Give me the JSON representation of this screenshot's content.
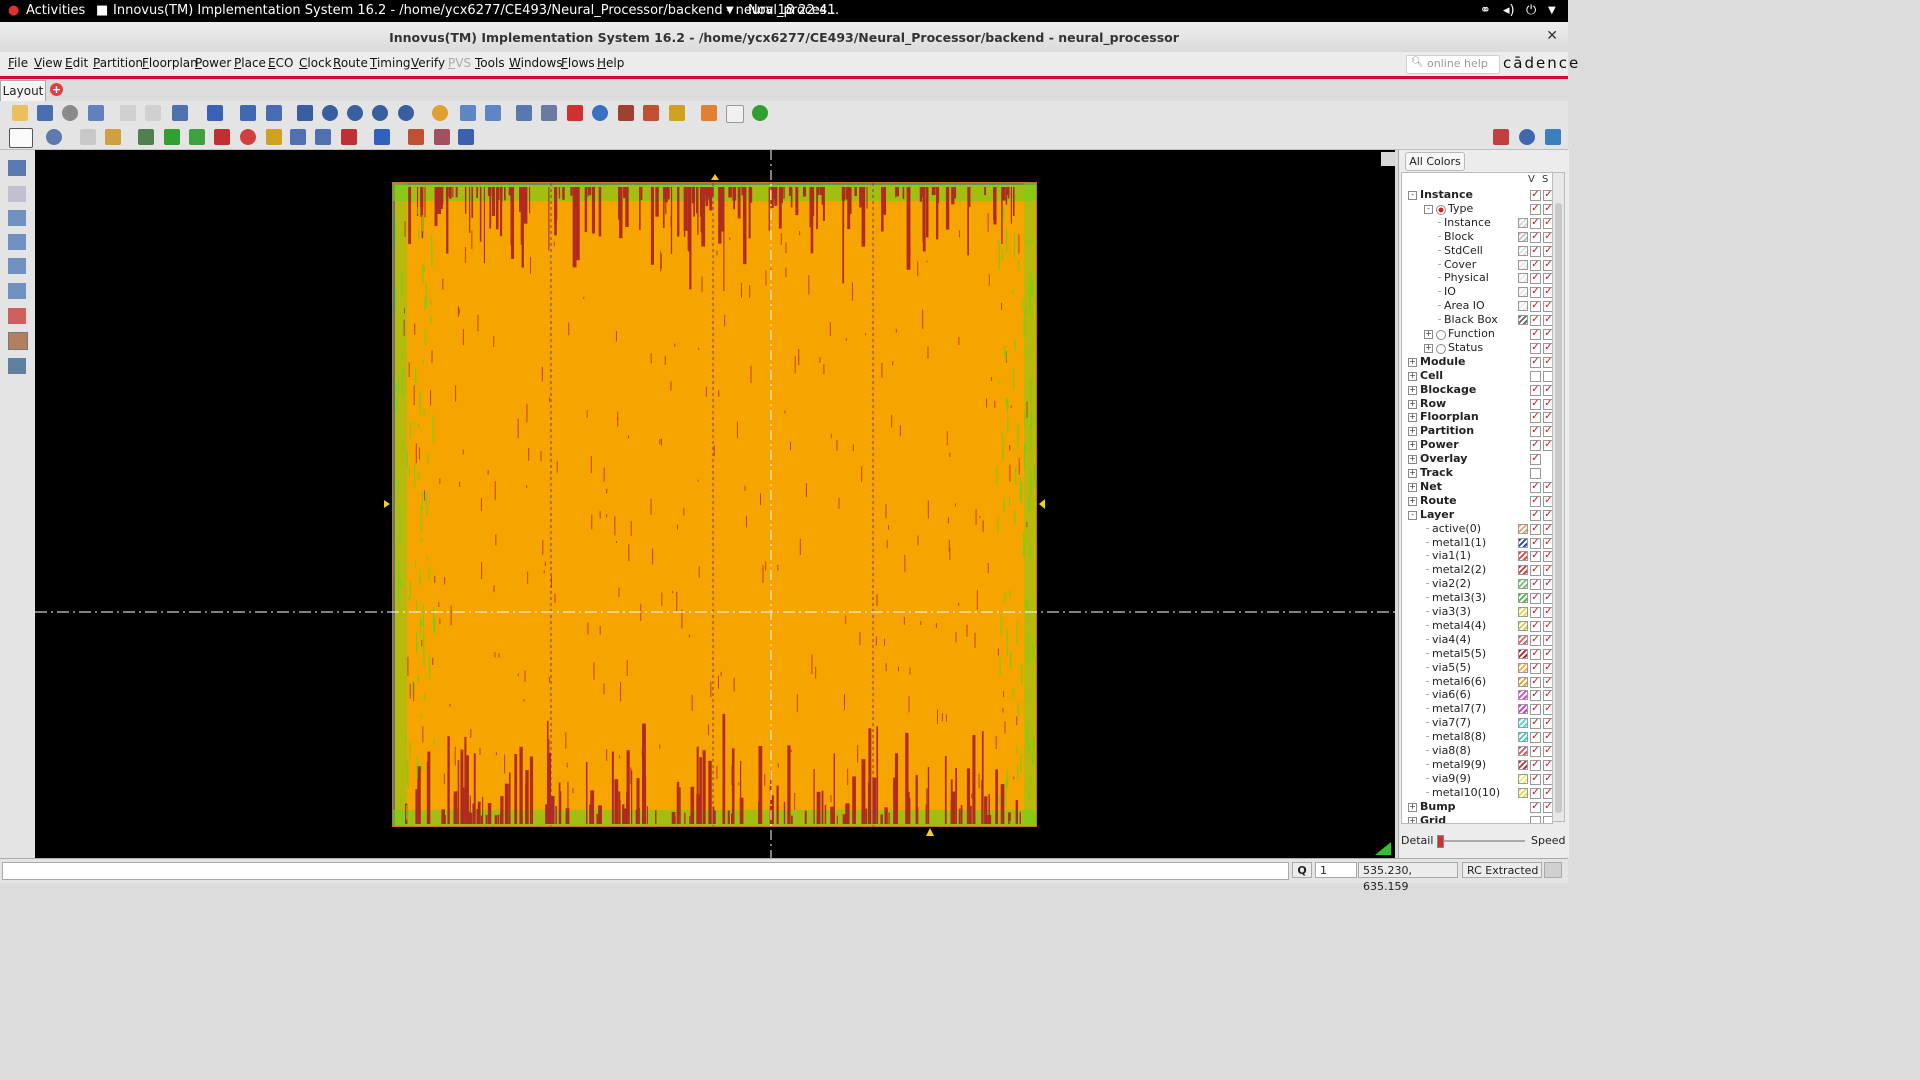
{
  "topbar": {
    "activities": "Activities",
    "window_title": "Innovus(TM) Implementation System 16.2 - /home/ycx6277/CE493/Neural_Processor/backend - neural_proces...",
    "datetime": "Nov 18  22:41"
  },
  "titlebar": {
    "title": "Innovus(TM) Implementation System 16.2 - /home/ycx6277/CE493/Neural_Processor/backend - neural_processor"
  },
  "menu": [
    "File",
    "View",
    "Edit",
    "Partition",
    "Floorplan",
    "Power",
    "Place",
    "ECO",
    "Clock",
    "Route",
    "Timing",
    "Verify",
    "PVS",
    "Tools",
    "Windows",
    "Flows",
    "Help"
  ],
  "search": {
    "placeholder": "online help"
  },
  "brand": "cādence",
  "tabs": {
    "layout": "Layout"
  },
  "panel": {
    "all_colors": "All Colors",
    "col_v": "V",
    "col_s": "S",
    "detail": "Detail",
    "speed": "Speed",
    "tree": [
      {
        "label": "Instance",
        "bold": true,
        "level": 0,
        "exp": "-",
        "v": true,
        "s": true
      },
      {
        "label": "Type",
        "bold": false,
        "level": 1,
        "exp": "-",
        "radio": "on",
        "v": true,
        "s": true
      },
      {
        "label": "Instance",
        "level": 2,
        "swatch": "#d8d8d8",
        "v": true,
        "s": true
      },
      {
        "label": "Block",
        "level": 2,
        "swatch": "#c0c0c0",
        "v": true,
        "s": true
      },
      {
        "label": "StdCell",
        "level": 2,
        "swatch": "#e0e0e0",
        "v": true,
        "s": true
      },
      {
        "label": "Cover",
        "level": 2,
        "swatch": "#e8e8e8",
        "v": true,
        "s": true
      },
      {
        "label": "Physical",
        "level": 2,
        "swatch": "#e8e8e8",
        "v": true,
        "s": true
      },
      {
        "label": "IO",
        "level": 2,
        "swatch": "#e8e8e8",
        "v": true,
        "s": true
      },
      {
        "label": "Area IO",
        "level": 2,
        "swatch": "#e8e8e8",
        "v": true,
        "s": true
      },
      {
        "label": "Black Box",
        "level": 2,
        "swatch": "#666666",
        "v": true,
        "s": true
      },
      {
        "label": "Function",
        "level": 1,
        "exp": "+",
        "radio": "off",
        "v": true,
        "s": true
      },
      {
        "label": "Status",
        "level": 1,
        "exp": "+",
        "radio": "off",
        "v": true,
        "s": true
      },
      {
        "label": "Module",
        "bold": true,
        "level": 0,
        "exp": "+",
        "v": true,
        "s": true
      },
      {
        "label": "Cell",
        "bold": true,
        "level": 0,
        "exp": "+",
        "v": false,
        "s": false
      },
      {
        "label": "Blockage",
        "bold": true,
        "level": 0,
        "exp": "+",
        "v": true,
        "s": true
      },
      {
        "label": "Row",
        "bold": true,
        "level": 0,
        "exp": "+",
        "v": true,
        "s": true
      },
      {
        "label": "Floorplan",
        "bold": true,
        "level": 0,
        "exp": "+",
        "v": true,
        "s": true
      },
      {
        "label": "Partition",
        "bold": true,
        "level": 0,
        "exp": "+",
        "v": true,
        "s": true
      },
      {
        "label": "Power",
        "bold": true,
        "level": 0,
        "exp": "+",
        "v": true,
        "s": true
      },
      {
        "label": "Overlay",
        "bold": true,
        "level": 0,
        "exp": "+",
        "v": true,
        "s": null
      },
      {
        "label": "Track",
        "bold": true,
        "level": 0,
        "exp": "+",
        "v": false,
        "s": null
      },
      {
        "label": "Net",
        "bold": true,
        "level": 0,
        "exp": "+",
        "v": true,
        "s": true
      },
      {
        "label": "Route",
        "bold": true,
        "level": 0,
        "exp": "+",
        "v": true,
        "s": true
      },
      {
        "label": "Layer",
        "bold": true,
        "level": 0,
        "exp": "-",
        "v": true,
        "s": true
      },
      {
        "label": "active(0)",
        "level": 3,
        "swatch": "#f0a060",
        "v": true,
        "s": true
      },
      {
        "label": "metal1(1)",
        "level": 3,
        "swatch": "#2040d0",
        "v": true,
        "s": true
      },
      {
        "label": "via1(1)",
        "level": 3,
        "swatch": "#e04040",
        "v": true,
        "s": true
      },
      {
        "label": "metal2(2)",
        "level": 3,
        "swatch": "#e03030",
        "v": true,
        "s": true
      },
      {
        "label": "via2(2)",
        "level": 3,
        "swatch": "#60d060",
        "v": true,
        "s": true
      },
      {
        "label": "metal3(3)",
        "level": 3,
        "swatch": "#40c040",
        "v": true,
        "s": true
      },
      {
        "label": "via3(3)",
        "level": 3,
        "swatch": "#e0e040",
        "v": true,
        "s": true
      },
      {
        "label": "metal4(4)",
        "level": 3,
        "swatch": "#d0d040",
        "v": true,
        "s": true
      },
      {
        "label": "via4(4)",
        "level": 3,
        "swatch": "#e06060",
        "v": true,
        "s": true
      },
      {
        "label": "metal5(5)",
        "level": 3,
        "swatch": "#c02020",
        "v": true,
        "s": true
      },
      {
        "label": "via5(5)",
        "level": 3,
        "swatch": "#f0b040",
        "v": true,
        "s": true
      },
      {
        "label": "metal6(6)",
        "level": 3,
        "swatch": "#f0a020",
        "v": true,
        "s": true
      },
      {
        "label": "via6(6)",
        "level": 3,
        "swatch": "#e040e0",
        "v": true,
        "s": true
      },
      {
        "label": "metal7(7)",
        "level": 3,
        "swatch": "#d030d0",
        "v": true,
        "s": true
      },
      {
        "label": "via7(7)",
        "level": 3,
        "swatch": "#40e0e0",
        "v": true,
        "s": true
      },
      {
        "label": "metal8(8)",
        "level": 3,
        "swatch": "#30d0d0",
        "v": true,
        "s": true
      },
      {
        "label": "via8(8)",
        "level": 3,
        "swatch": "#e05050",
        "v": true,
        "s": true
      },
      {
        "label": "metal9(9)",
        "level": 3,
        "swatch": "#c03030",
        "v": true,
        "s": true
      },
      {
        "label": "via9(9)",
        "level": 3,
        "swatch": "#f0f060",
        "v": true,
        "s": true
      },
      {
        "label": "metal10(10)",
        "level": 3,
        "swatch": "#e0e040",
        "v": true,
        "s": true
      },
      {
        "label": "Bump",
        "bold": true,
        "level": 0,
        "exp": "+",
        "v": true,
        "s": true
      },
      {
        "label": "Grid",
        "bold": true,
        "level": 0,
        "exp": "+",
        "v": false,
        "s": false
      }
    ]
  },
  "status": {
    "q_label": "Q",
    "count": "1",
    "coords": "535.230, 635.159",
    "rc_status": "RC Extracted"
  },
  "colors": {
    "die_fill": "#f6a400",
    "congestion": "#b02a20",
    "route_green": "#6ad21c",
    "route_blue": "#2c3cc8",
    "accent_red": "#c8102e"
  }
}
